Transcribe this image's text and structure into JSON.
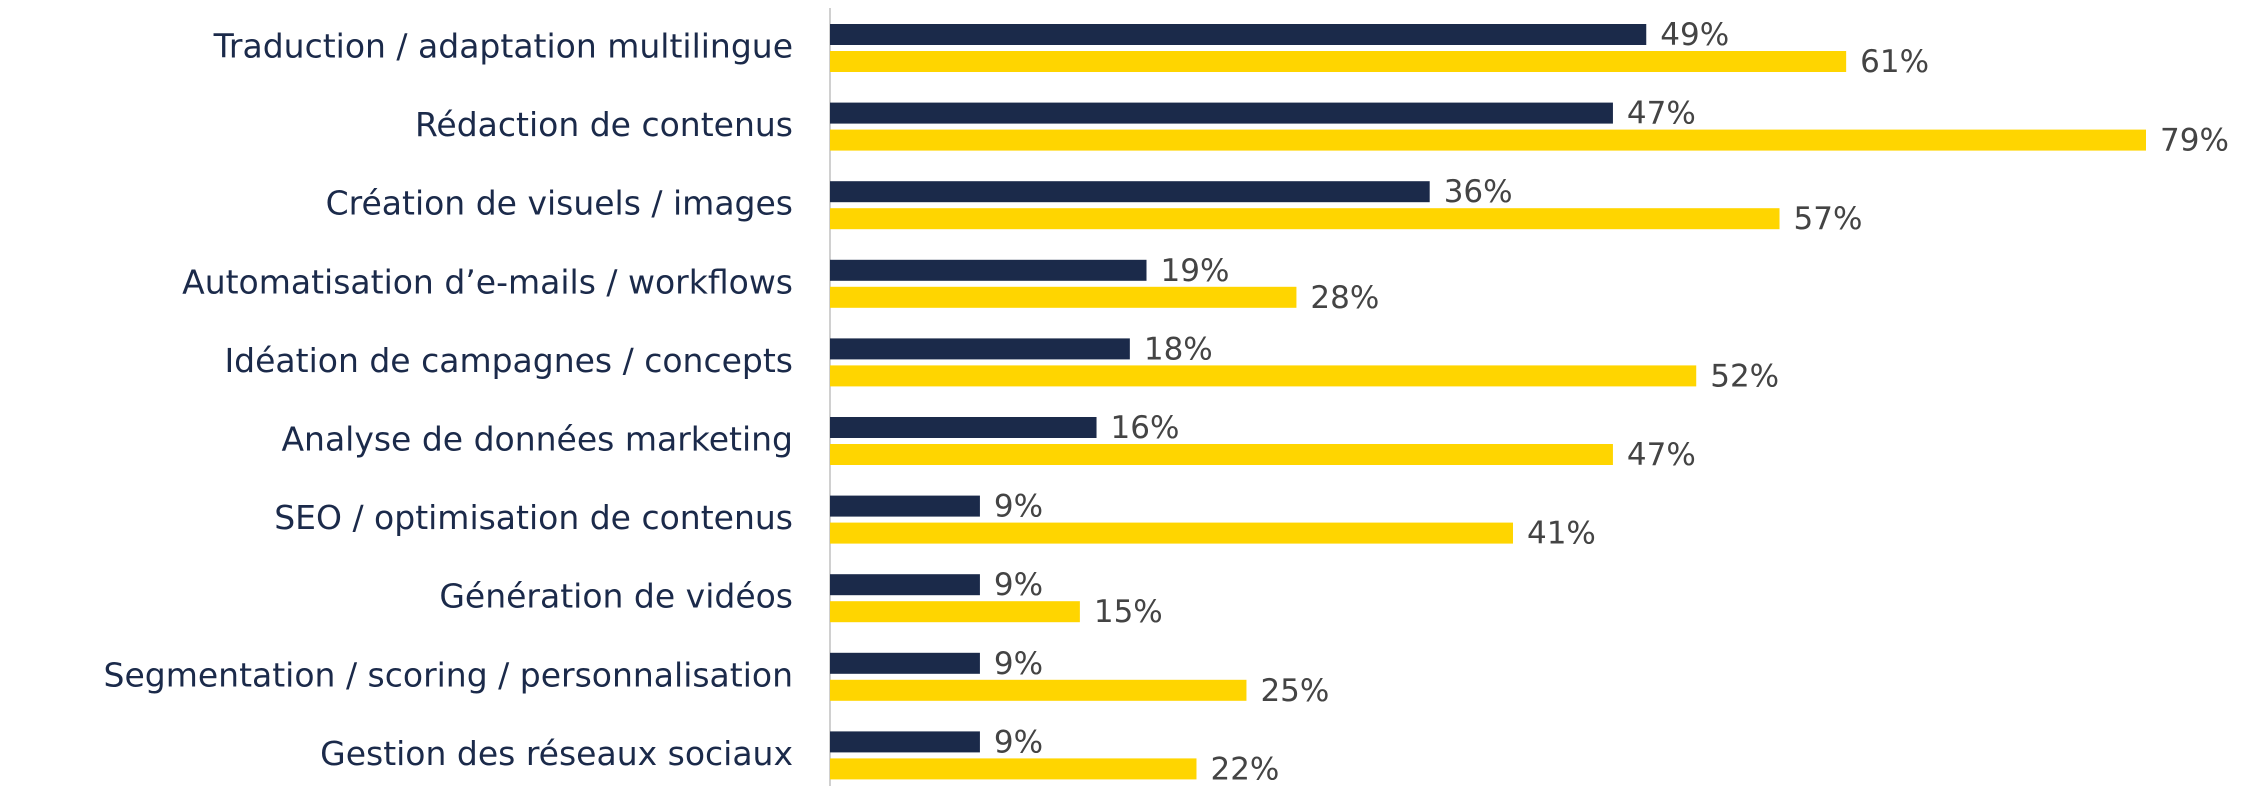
{
  "chart_data": {
    "type": "bar",
    "orientation": "horizontal",
    "categories": [
      "Traduction / adaptation multilingue",
      "Rédaction de contenus",
      "Création de visuels / images",
      "Automatisation d’e-mails / workflows",
      "Idéation de campagnes / concepts",
      "Analyse de données marketing",
      "SEO / optimisation de contenus",
      "Génération de vidéos",
      "Segmentation / scoring / personnalisation",
      "Gestion des réseaux sociaux"
    ],
    "series": [
      {
        "color": "#1b2a4a",
        "values": [
          49,
          47,
          36,
          19,
          18,
          16,
          9,
          9,
          9,
          9
        ],
        "value_labels": [
          "49%",
          "47%",
          "36%",
          "19%",
          "18%",
          "16%",
          "9%",
          "9%",
          "9%",
          "9%"
        ]
      },
      {
        "color": "#ffd500",
        "values": [
          61,
          79,
          57,
          28,
          52,
          47,
          41,
          15,
          25,
          22
        ],
        "value_labels": [
          "61%",
          "79%",
          "57%",
          "28%",
          "52%",
          "47%",
          "41%",
          "15%",
          "25%",
          "22%"
        ]
      }
    ]
  }
}
